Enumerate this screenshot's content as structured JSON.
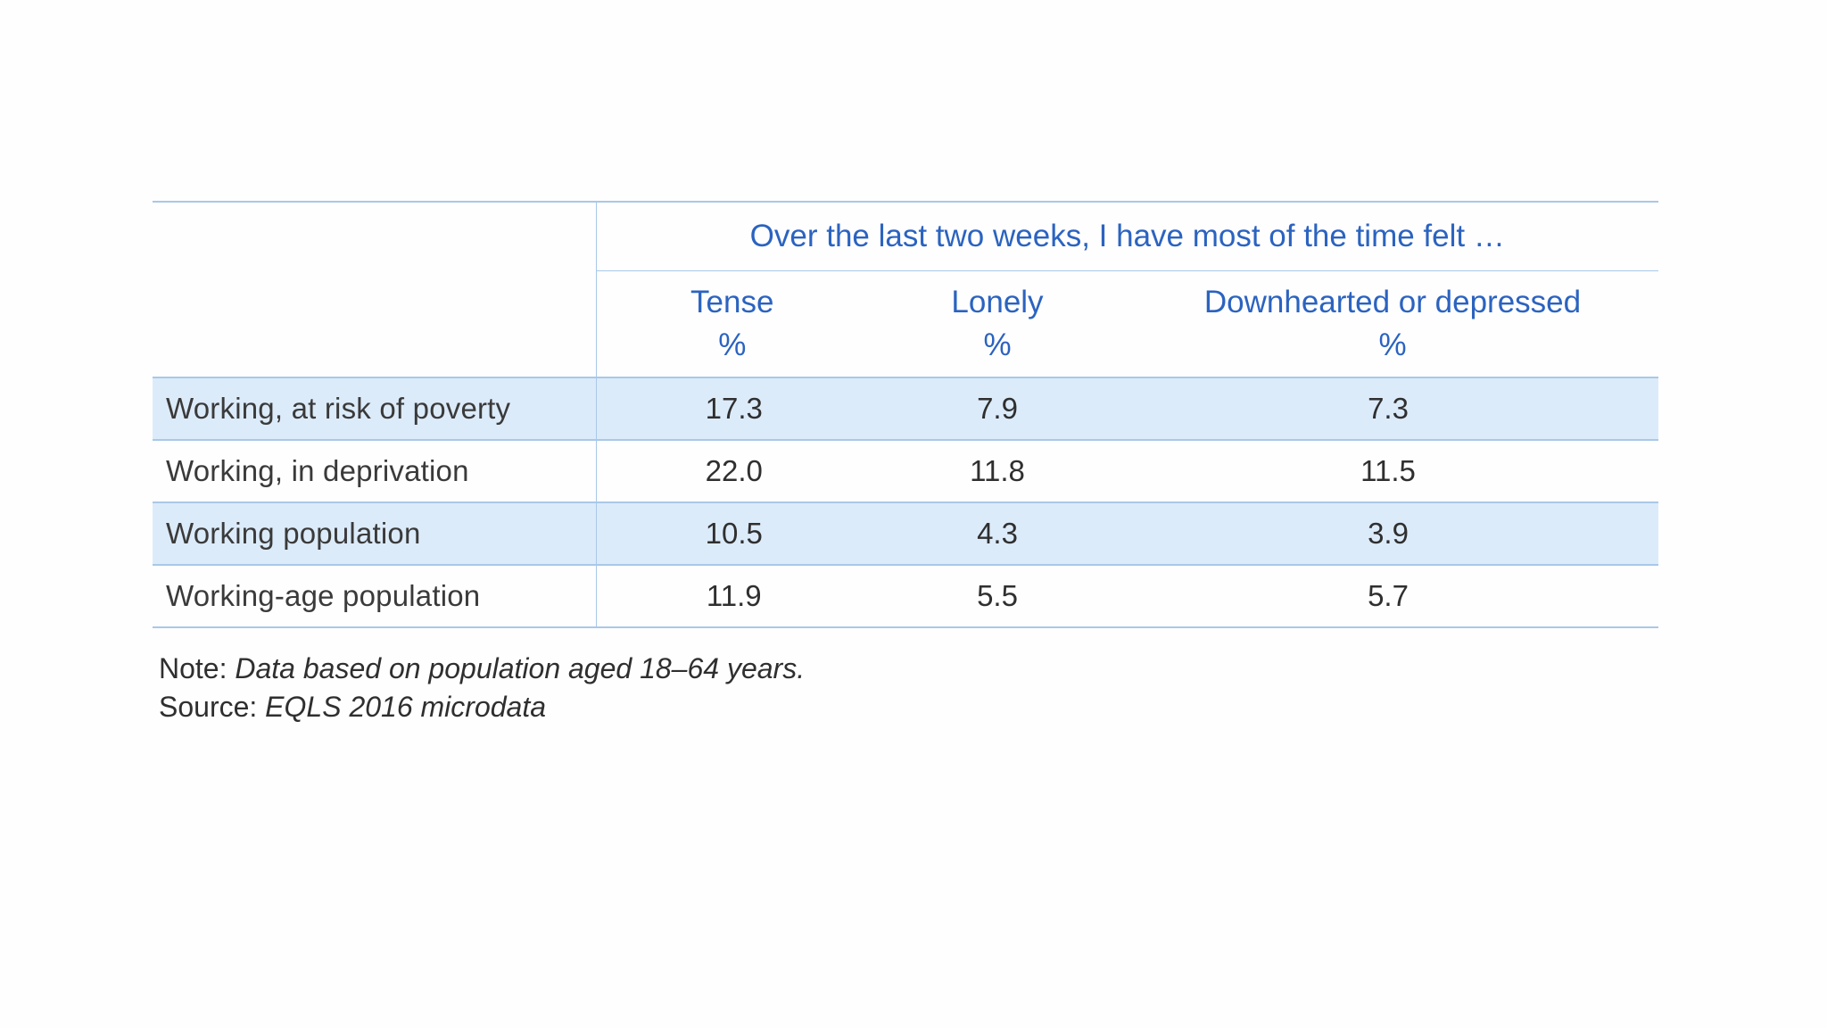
{
  "table": {
    "super_header": "Over the last two weeks, I have most of the time felt …",
    "columns": [
      {
        "name": "Tense",
        "unit": "%"
      },
      {
        "name": "Lonely",
        "unit": "%"
      },
      {
        "name": "Downhearted or depressed",
        "unit": "%"
      }
    ],
    "rows": [
      {
        "label": "Working, at risk of poverty",
        "tense": "17.3",
        "lonely": "7.9",
        "down": "7.3"
      },
      {
        "label": "Working, in deprivation",
        "tense": "22.0",
        "lonely": "11.8",
        "down": "11.5"
      },
      {
        "label": "Working population",
        "tense": "10.5",
        "lonely": "4.3",
        "down": "3.9"
      },
      {
        "label": "Working-age population",
        "tense": "11.9",
        "lonely": "5.5",
        "down": "5.7"
      }
    ]
  },
  "notes": {
    "note_label": "Note:",
    "note_text": "Data based on population aged 18–64 years.",
    "source_label": "Source:",
    "source_text": "EQLS 2016 microdata"
  },
  "colors": {
    "header_text": "#2b63c0",
    "rule": "#a8c8e8",
    "shaded_row": "#dcebfa",
    "body_text": "#2f2f2f"
  }
}
